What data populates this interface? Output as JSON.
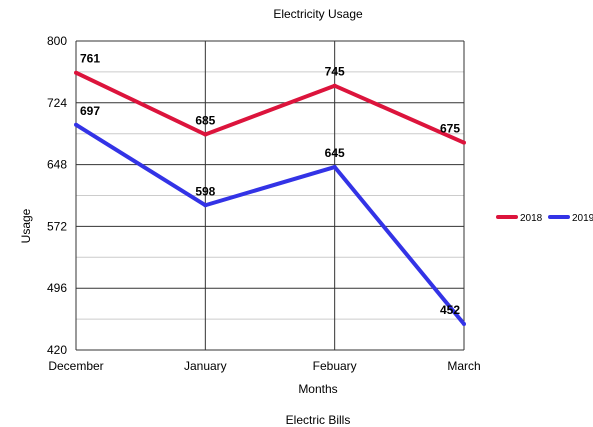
{
  "chart_data": {
    "type": "line",
    "title": "Electricity Usage",
    "caption": "Electric Bills",
    "xlabel": "Months",
    "ylabel": "Usage",
    "categories": [
      "December",
      "January",
      "Febuary",
      "March"
    ],
    "ylim": [
      420,
      800
    ],
    "yticks": [
      420,
      496,
      572,
      648,
      724,
      800
    ],
    "grid": true,
    "legend_position": "right",
    "series": [
      {
        "name": "2018",
        "color": "#dc143c",
        "values": [
          761,
          685,
          745,
          675
        ],
        "labels": [
          "761",
          "685",
          "745",
          "675"
        ]
      },
      {
        "name": "2019",
        "color": "#3333e6",
        "values": [
          697,
          598,
          645,
          452
        ],
        "labels": [
          "697",
          "598",
          "645",
          "452"
        ]
      }
    ]
  }
}
